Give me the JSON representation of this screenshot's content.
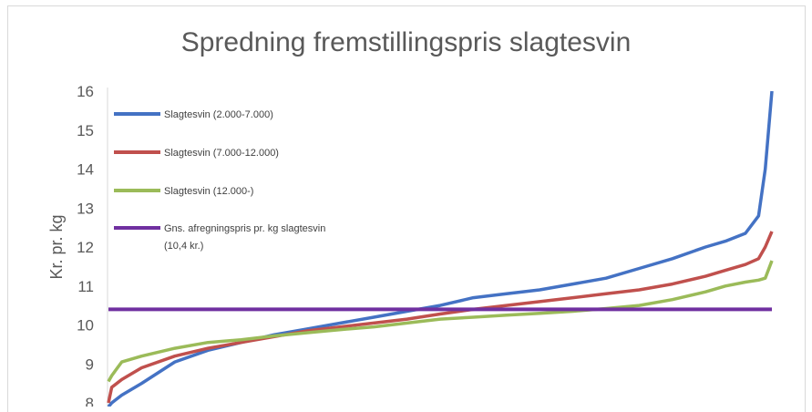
{
  "chart_data": {
    "type": "line",
    "title": "Spredning fremstillingspris slagtesvin",
    "xlabel": "",
    "ylabel": "Kr. pr. kg",
    "ylim": [
      8,
      16
    ],
    "yticks": [
      "8",
      "9",
      "10",
      "11",
      "12",
      "13",
      "14",
      "15",
      "16"
    ],
    "grid": false,
    "legend_position": "top-left",
    "x": [
      0,
      0.005,
      0.02,
      0.05,
      0.1,
      0.15,
      0.2,
      0.25,
      0.3,
      0.35,
      0.4,
      0.45,
      0.5,
      0.55,
      0.6,
      0.65,
      0.7,
      0.75,
      0.8,
      0.85,
      0.9,
      0.93,
      0.96,
      0.98,
      0.99,
      1.0
    ],
    "series": [
      {
        "name": "Slagtesvin (2.000-7.000)",
        "color": "#4472c4",
        "values": [
          7.9,
          8.0,
          8.2,
          8.5,
          9.05,
          9.35,
          9.55,
          9.75,
          9.9,
          10.05,
          10.2,
          10.35,
          10.5,
          10.7,
          10.8,
          10.9,
          11.05,
          11.2,
          11.45,
          11.7,
          12.0,
          12.15,
          12.35,
          12.8,
          14.0,
          16.0
        ]
      },
      {
        "name": "Slagtesvin (7.000-12.000)",
        "color": "#c0504d",
        "values": [
          8.0,
          8.4,
          8.6,
          8.9,
          9.2,
          9.4,
          9.55,
          9.7,
          9.85,
          9.95,
          10.05,
          10.15,
          10.28,
          10.4,
          10.5,
          10.6,
          10.7,
          10.8,
          10.9,
          11.05,
          11.25,
          11.4,
          11.55,
          11.7,
          12.0,
          12.4
        ]
      },
      {
        "name": "Slagtesvin (12.000-)",
        "color": "#9bbb59",
        "values": [
          8.55,
          8.7,
          9.05,
          9.2,
          9.4,
          9.55,
          9.62,
          9.72,
          9.8,
          9.88,
          9.95,
          10.05,
          10.15,
          10.2,
          10.25,
          10.3,
          10.35,
          10.42,
          10.5,
          10.65,
          10.85,
          11.0,
          11.1,
          11.15,
          11.2,
          11.65
        ]
      },
      {
        "name": "Gns. afregningspris pr. kg slagtesvin (10,4 kr.)",
        "legend_lines": [
          "Gns. afregningspris pr. kg slagtesvin",
          "(10,4 kr.)"
        ],
        "color": "#7030a0",
        "values": [
          10.4,
          10.4,
          10.4,
          10.4,
          10.4,
          10.4,
          10.4,
          10.4,
          10.4,
          10.4,
          10.4,
          10.4,
          10.4,
          10.4,
          10.4,
          10.4,
          10.4,
          10.4,
          10.4,
          10.4,
          10.4,
          10.4,
          10.4,
          10.4,
          10.4,
          10.4
        ]
      }
    ]
  }
}
